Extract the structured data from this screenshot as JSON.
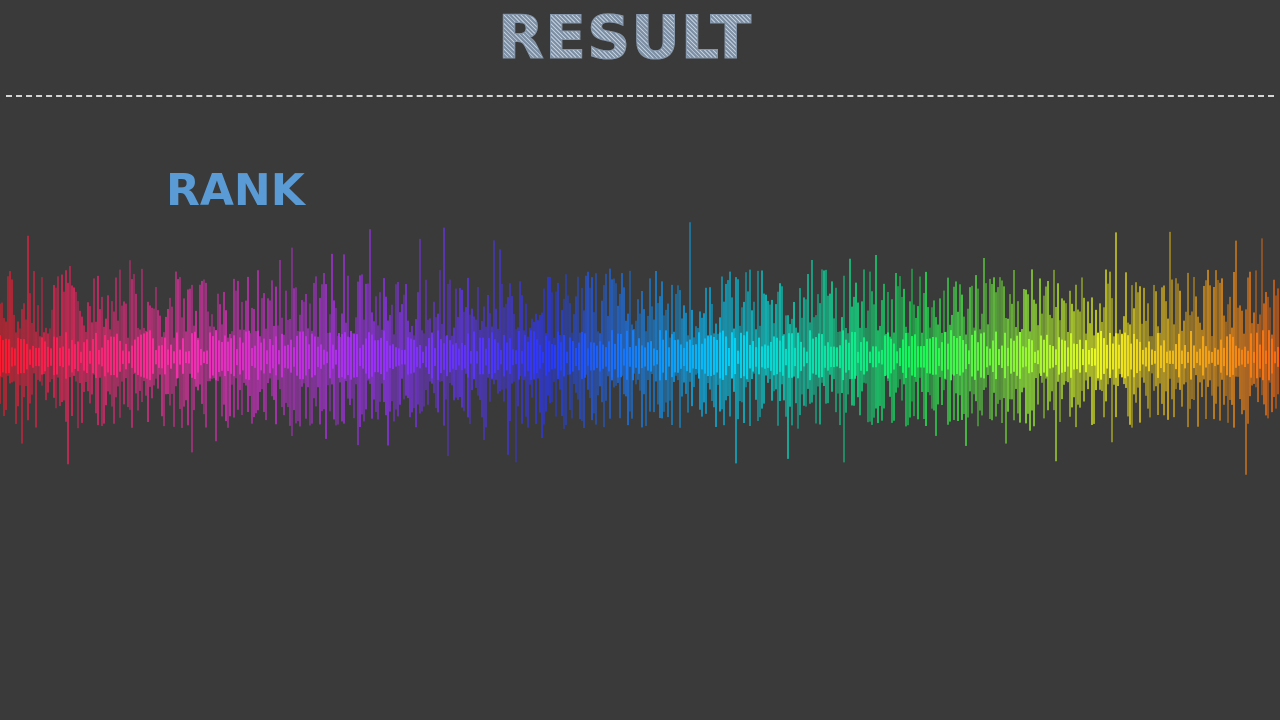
{
  "screen": {
    "title": "RESULT",
    "rank_label": "RANK"
  },
  "waveform": {
    "icon": "rainbow-sound-waveform",
    "colors": [
      "#ff1a2e",
      "#ff2fb4",
      "#a430ff",
      "#2838ff",
      "#00d8ff",
      "#14ff5a",
      "#f2ff1e",
      "#ff6a10"
    ]
  },
  "theme": {
    "background": "#3a3a3a",
    "title_color": "#9aabbf",
    "rank_color": "#5b9bd5",
    "divider_color": "#d6d6d6"
  }
}
